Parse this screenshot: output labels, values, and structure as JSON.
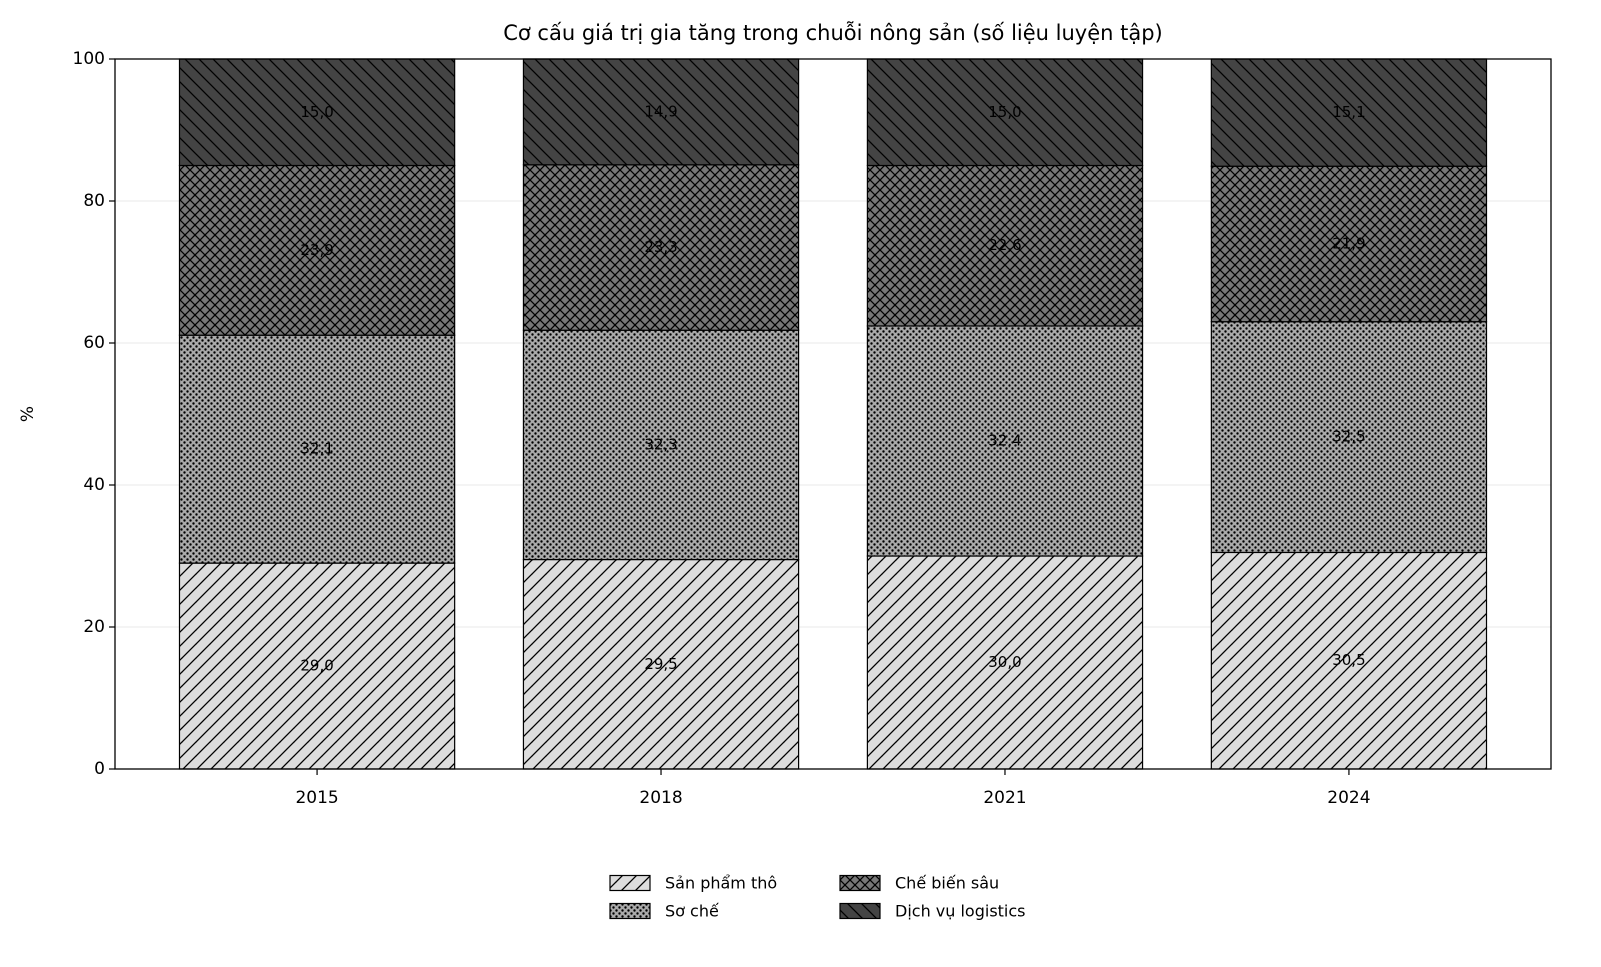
{
  "chart_data": {
    "type": "stacked_bar",
    "title": "Cơ cấu giá trị gia tăng trong chuỗi nông sản (số liệu luyện tập)",
    "y_label": "%",
    "categories": [
      "2015",
      "2018",
      "2021",
      "2024"
    ],
    "series": [
      {
        "name": "Sản phẩm thô",
        "color": "#dddddd",
        "hatch": "/",
        "values": [
          29.0,
          29.5,
          30.0,
          30.5
        ],
        "value_labels": [
          "29,0",
          "29,5",
          "30,0",
          "30,5"
        ]
      },
      {
        "name": "Sơ chế",
        "color": "#aaaaaa",
        "hatch": ".",
        "values": [
          32.1,
          32.3,
          32.4,
          32.5
        ],
        "value_labels": [
          "32,1",
          "32,3",
          "32,4",
          "32,5"
        ]
      },
      {
        "name": "Chế biến sâu",
        "color": "#777777",
        "hatch": "x",
        "values": [
          23.9,
          23.3,
          22.6,
          21.9
        ],
        "value_labels": [
          "23,9",
          "23,3",
          "22,6",
          "21,9"
        ]
      },
      {
        "name": "Dịch vụ logistics",
        "color": "#444444",
        "hatch": "\\",
        "values": [
          15.0,
          14.9,
          15.0,
          15.1
        ],
        "value_labels": [
          "15,0",
          "14,9",
          "15,0",
          "15,1"
        ]
      }
    ],
    "ylim": [
      0,
      100
    ],
    "yticks": [
      0,
      20,
      40,
      60,
      80,
      100
    ],
    "grid": true,
    "legend": "bottom"
  }
}
